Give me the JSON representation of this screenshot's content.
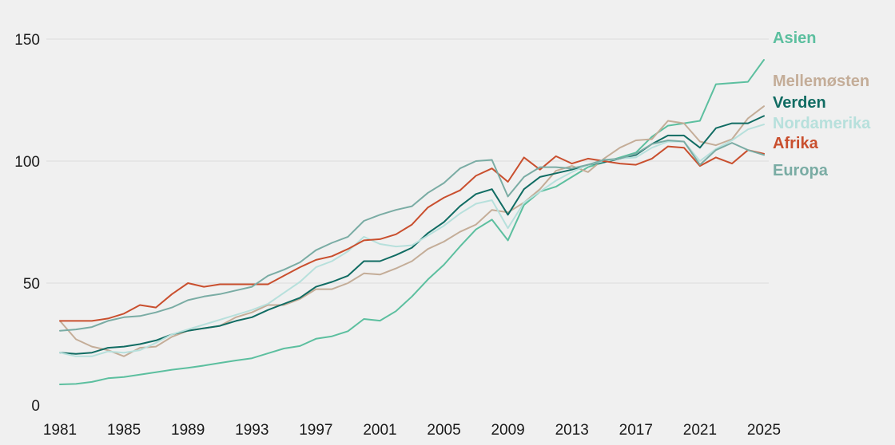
{
  "chart_data": {
    "type": "line",
    "title": "",
    "xlabel": "",
    "ylabel": "",
    "xlim": [
      1981,
      2025
    ],
    "ylim": [
      0,
      150
    ],
    "yticks": [
      0,
      50,
      100,
      150
    ],
    "ytick_labels": [
      "0",
      "50",
      "100",
      "150"
    ],
    "xticks": [
      1981,
      1985,
      1989,
      1993,
      1997,
      2001,
      2005,
      2009,
      2013,
      2017,
      2021,
      2025
    ],
    "xtick_labels": [
      "1981",
      "1985",
      "1989",
      "1993",
      "1997",
      "2001",
      "2005",
      "2009",
      "2013",
      "2017",
      "2021",
      "2025"
    ],
    "grid": "horizontal",
    "legend": "labels at line ends (right)",
    "x": [
      1981,
      1982,
      1983,
      1984,
      1985,
      1986,
      1987,
      1988,
      1989,
      1990,
      1991,
      1992,
      1993,
      1994,
      1995,
      1996,
      1997,
      1998,
      1999,
      2000,
      2001,
      2002,
      2003,
      2004,
      2005,
      2006,
      2007,
      2008,
      2009,
      2010,
      2011,
      2012,
      2013,
      2014,
      2015,
      2016,
      2017,
      2018,
      2019,
      2020,
      2021,
      2022,
      2023,
      2024,
      2025
    ],
    "series": [
      {
        "name": "Asien",
        "color": "#5cbf9f",
        "values": [
          8.5,
          8.7,
          9.5,
          11,
          11.5,
          12.5,
          13.5,
          14.5,
          15.3,
          16.2,
          17.3,
          18.3,
          19.2,
          21.2,
          23.2,
          24.2,
          27.2,
          28.2,
          30.3,
          35.3,
          34.6,
          38.5,
          44.5,
          51.5,
          57.5,
          65,
          72,
          76,
          67.5,
          82,
          87.5,
          89.5,
          93.5,
          97.5,
          99.5,
          101.5,
          103.5,
          110,
          114.5,
          115.5,
          116.5,
          131.5,
          132,
          132.5,
          141.5
        ]
      },
      {
        "name": "Mellemøsten",
        "color": "#c4ad98",
        "values": [
          34.5,
          27,
          24,
          22.5,
          20,
          23.5,
          24,
          28,
          30.5,
          31.5,
          32.5,
          36,
          38,
          41,
          41,
          43.5,
          47.5,
          47.5,
          50,
          54,
          53.5,
          56,
          59,
          64,
          67,
          71,
          74,
          80,
          79,
          83,
          88.5,
          96,
          98,
          95.5,
          101,
          105.5,
          108.5,
          109,
          116.5,
          115.5,
          108,
          106.5,
          109,
          117.5,
          122.5
        ]
      },
      {
        "name": "Verden",
        "color": "#116c63",
        "values": [
          21.5,
          21,
          21.5,
          23.5,
          24,
          25,
          26.5,
          29,
          30.5,
          31.5,
          32.5,
          34.5,
          36,
          39,
          41.5,
          44,
          48.5,
          50.5,
          53,
          59,
          59,
          61.5,
          64.5,
          70.5,
          75,
          81.5,
          86.5,
          88.5,
          78,
          88.5,
          93.5,
          95,
          96.5,
          98.5,
          99.5,
          101,
          102.5,
          107,
          110.5,
          110.5,
          105.5,
          113.5,
          115.5,
          115.5,
          118.5
        ]
      },
      {
        "name": "Nordamerika",
        "color": "#b7e0dc",
        "values": [
          21.5,
          20,
          20,
          22,
          21.5,
          22.5,
          25.5,
          29,
          31,
          33,
          35,
          37,
          39,
          41.5,
          46,
          50.5,
          56.5,
          59,
          63,
          69,
          66,
          65,
          65.5,
          69.5,
          73.5,
          78.5,
          82.5,
          84,
          72.5,
          83,
          87.5,
          92,
          95.5,
          98.5,
          100,
          101,
          101.5,
          105.5,
          108,
          108,
          100,
          105,
          108.5,
          113,
          115
        ]
      },
      {
        "name": "Afrika",
        "color": "#c94f2e",
        "values": [
          34.5,
          34.5,
          34.5,
          35.5,
          37.5,
          41,
          40,
          45.5,
          50,
          48.5,
          49.5,
          49.5,
          49.5,
          49.5,
          53,
          56.5,
          59.5,
          61,
          64,
          67.5,
          68,
          70,
          74,
          81,
          85,
          88,
          94,
          97,
          91.5,
          101.5,
          96.5,
          102,
          99,
          101,
          100,
          99,
          98.5,
          101,
          106,
          105.5,
          98,
          101.5,
          99,
          104.5,
          103
        ]
      },
      {
        "name": "Europa",
        "color": "#7aaca4",
        "values": [
          30.5,
          31,
          32,
          34.5,
          36,
          36.5,
          38,
          40,
          43,
          44.5,
          45.5,
          47,
          48.5,
          53,
          55.5,
          58.5,
          63.5,
          66.5,
          69,
          75.5,
          78,
          80,
          81.5,
          87,
          91,
          97,
          100,
          100.5,
          85.5,
          93.5,
          97.5,
          97.5,
          97,
          98.5,
          100.5,
          101,
          103,
          107,
          108.5,
          108,
          98.5,
          104.5,
          107.5,
          104.5,
          102.5
        ]
      }
    ]
  }
}
